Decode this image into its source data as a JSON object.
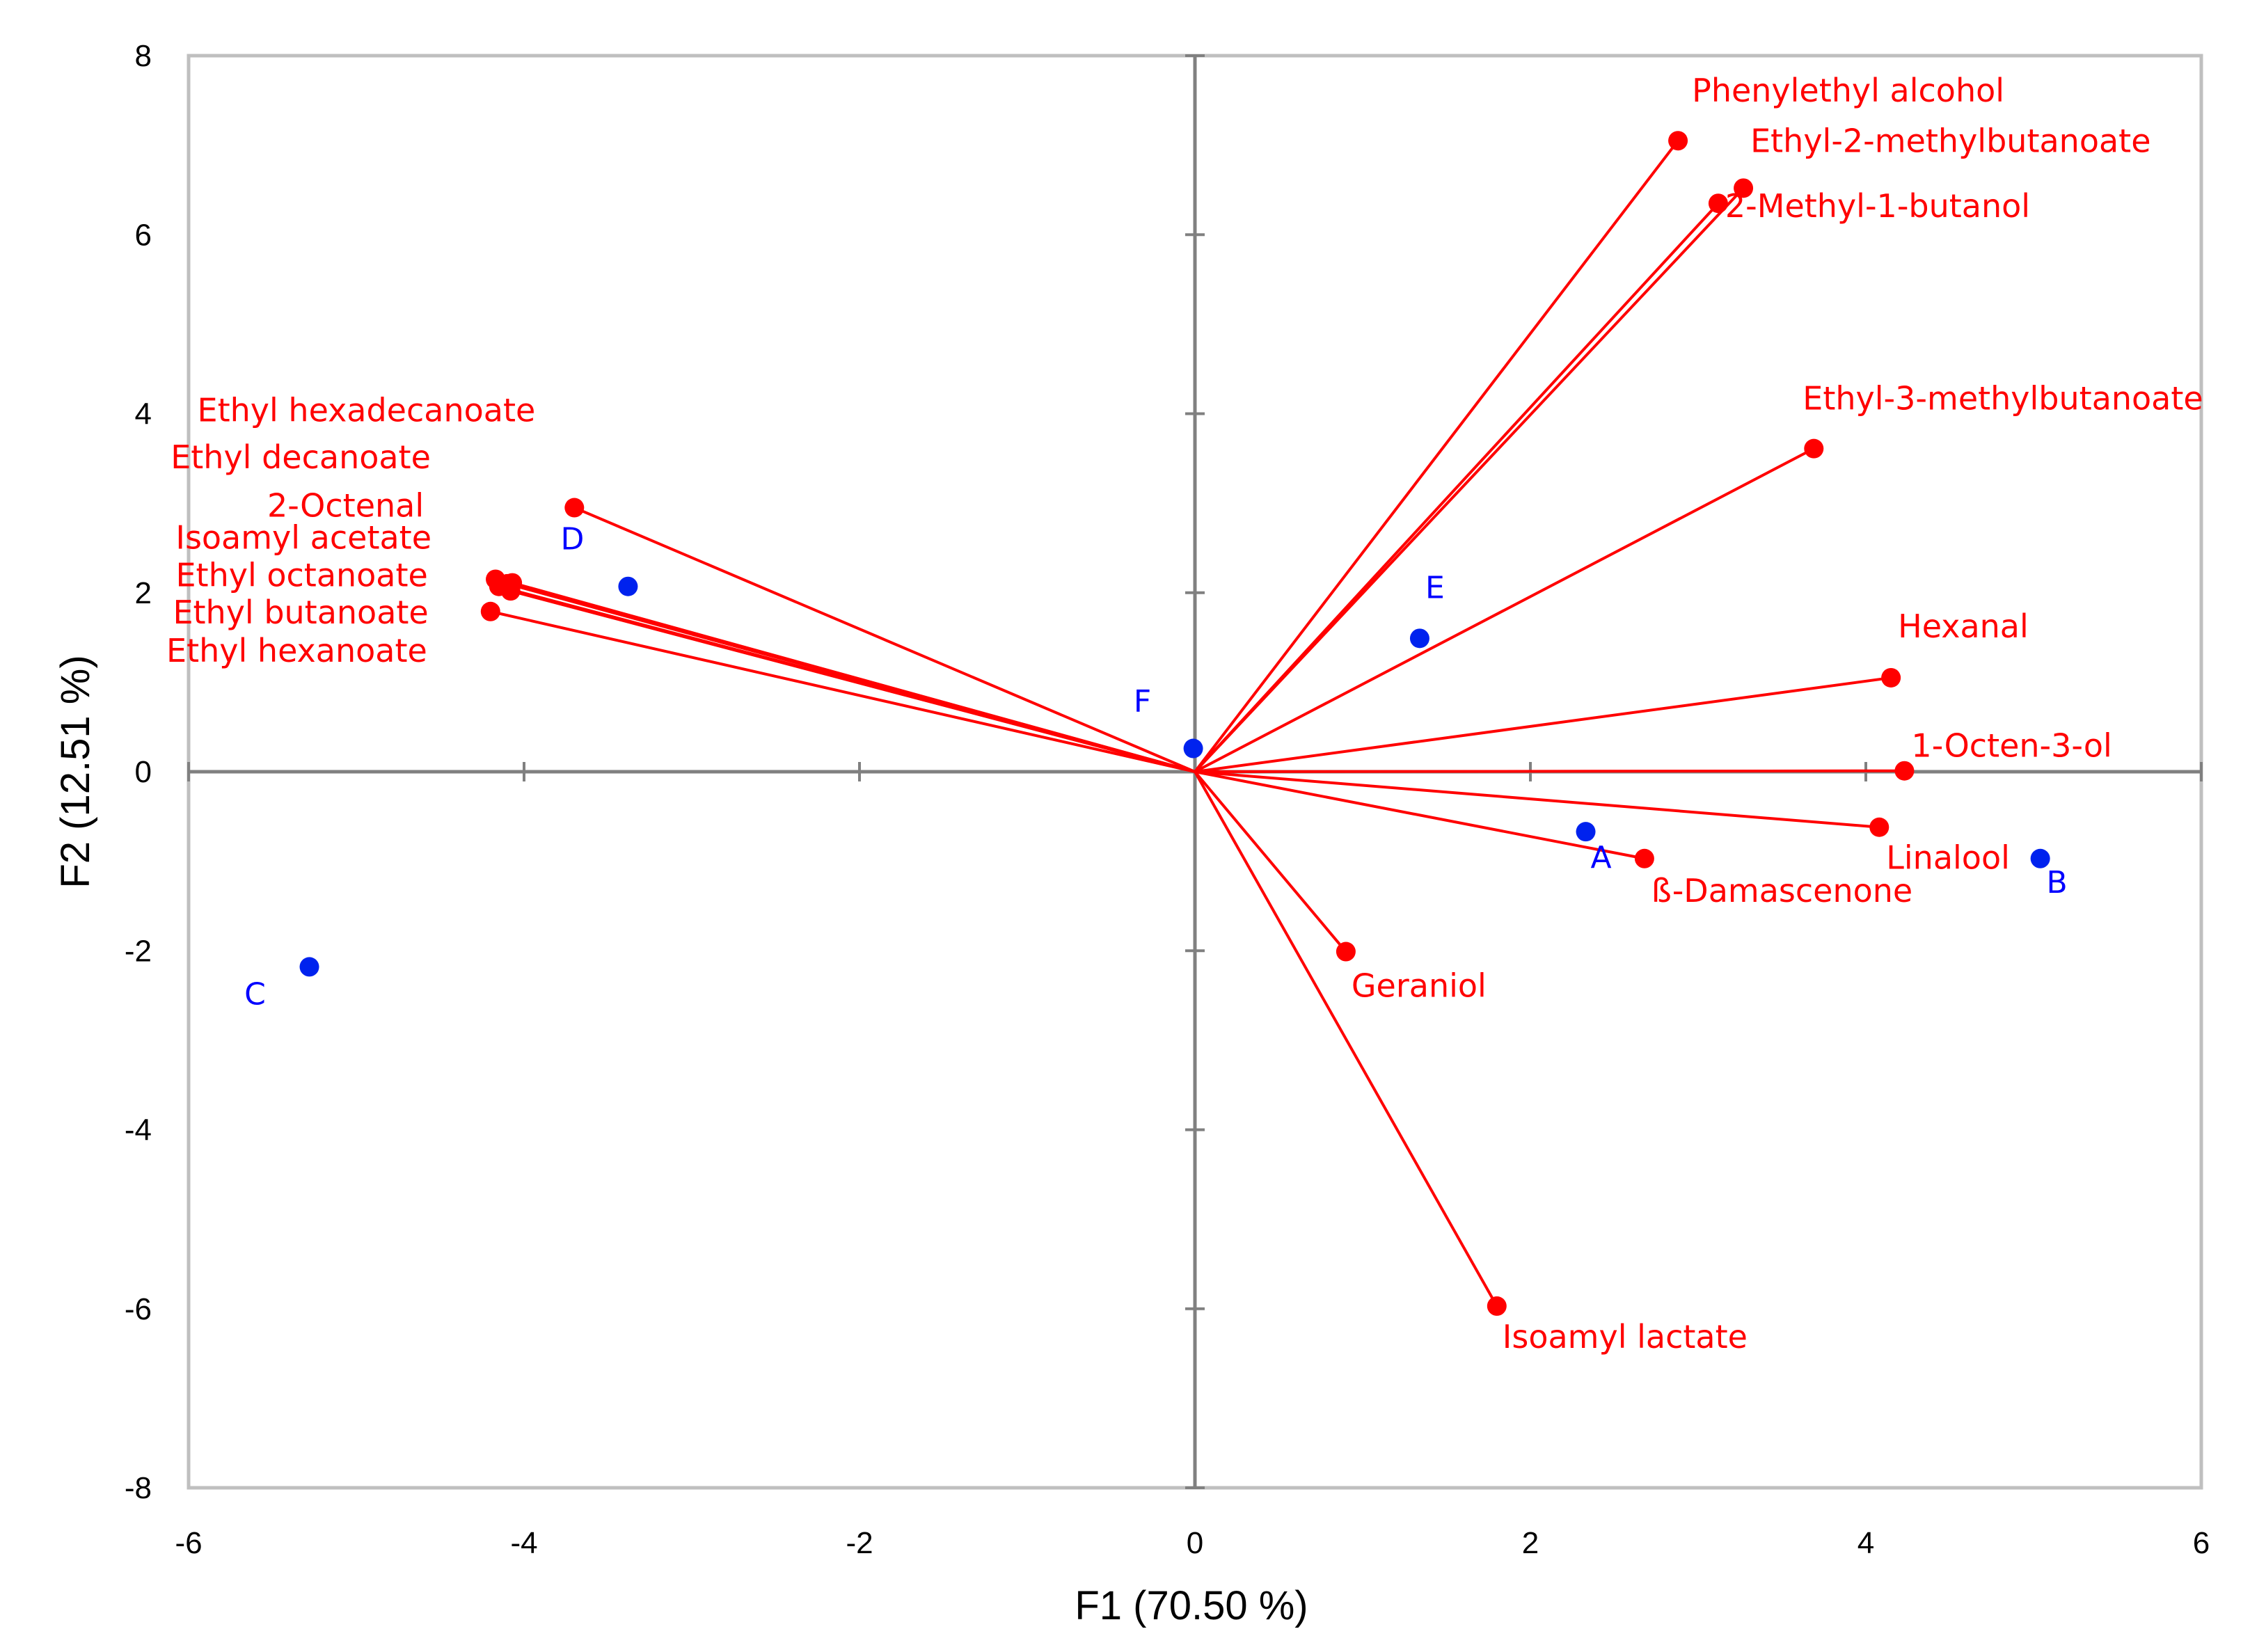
{
  "chart_data": {
    "type": "scatter",
    "subtype": "pca-biplot",
    "xlabel": "F1 (70.50 %)",
    "ylabel": "F2 (12.51 %)",
    "xlim": [
      -6,
      6
    ],
    "ylim": [
      -8,
      8
    ],
    "xticks": [
      -6,
      -4,
      -2,
      0,
      2,
      4,
      6
    ],
    "yticks": [
      -8,
      -6,
      -4,
      -2,
      0,
      2,
      4,
      6,
      8
    ],
    "grid": false,
    "colors": {
      "variables": "#ff0000",
      "observations": "#0022ee",
      "axes": "#808080",
      "frame": "#bfbfbf"
    },
    "variables": [
      {
        "name": "Phenylethyl alcohol",
        "x": 2.88,
        "y": 7.05
      },
      {
        "name": "Ethyl-2-methylbutanoate",
        "x": 3.27,
        "y": 6.52
      },
      {
        "name": "2-Methyl-1-butanol",
        "x": 3.12,
        "y": 6.35
      },
      {
        "name": "Ethyl-3-methylbutanoate",
        "x": 3.69,
        "y": 3.61
      },
      {
        "name": "Hexanal",
        "x": 4.15,
        "y": 1.05
      },
      {
        "name": "1-Octen-3-ol",
        "x": 4.23,
        "y": 0.01
      },
      {
        "name": "Linalool",
        "x": 4.08,
        "y": -0.62
      },
      {
        "name": "ß-Damascenone",
        "x": 2.68,
        "y": -0.97
      },
      {
        "name": "Geraniol",
        "x": 0.9,
        "y": -2.01
      },
      {
        "name": "Isoamyl lactate",
        "x": 1.8,
        "y": -5.97
      },
      {
        "name": "Ethyl hexadecanoate",
        "x": -3.7,
        "y": 2.95
      },
      {
        "name": "Ethyl decanoate",
        "x": -4.1,
        "y": 2.1
      },
      {
        "name": "2-Octenal",
        "x": -4.07,
        "y": 2.11
      },
      {
        "name": "Isoamyl acetate",
        "x": -4.17,
        "y": 2.15
      },
      {
        "name": "Ethyl octanoate",
        "x": -4.15,
        "y": 2.07
      },
      {
        "name": "Ethyl butanoate",
        "x": -4.08,
        "y": 2.02
      },
      {
        "name": "Ethyl hexanoate",
        "x": -4.2,
        "y": 1.79
      }
    ],
    "observations": [
      {
        "name": "A",
        "x": 2.33,
        "y": -0.67
      },
      {
        "name": "B",
        "x": 5.04,
        "y": -0.97
      },
      {
        "name": "C",
        "x": -5.28,
        "y": -2.18
      },
      {
        "name": "D",
        "x": -3.38,
        "y": 2.07
      },
      {
        "name": "E",
        "x": 1.34,
        "y": 1.49
      },
      {
        "name": "F",
        "x": -0.01,
        "y": 0.26
      }
    ]
  }
}
